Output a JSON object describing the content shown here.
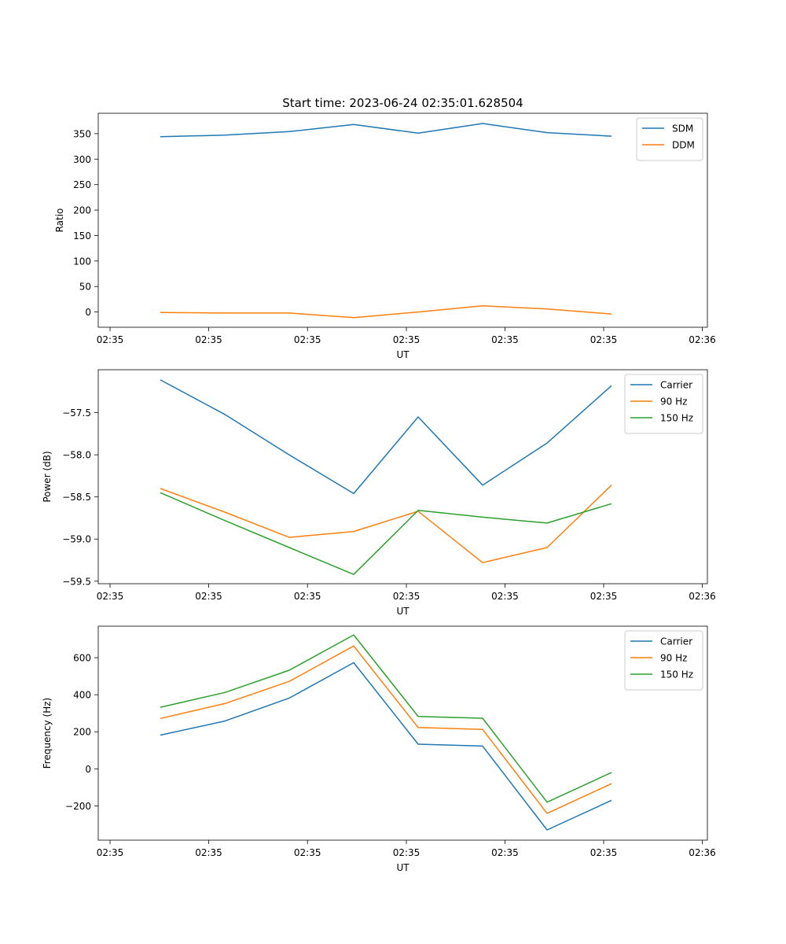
{
  "figure_title": "Start time: 2023-06-24 02:35:01.628504",
  "x_tick_labels": [
    "02:35",
    "02:35",
    "02:35",
    "02:35",
    "02:35",
    "02:35",
    "02:36"
  ],
  "colors": {
    "blue": "#1f77b4",
    "orange": "#ff7f0e",
    "green": "#2ca02c"
  },
  "chart_data": [
    {
      "type": "line",
      "title": "Start time: 2023-06-24 02:35:01.628504",
      "xlabel": "UT",
      "ylabel": "Ratio",
      "ylim": [
        -30,
        390
      ],
      "yticks": [
        0,
        50,
        100,
        150,
        200,
        250,
        300,
        350
      ],
      "ytick_labels": [
        "0",
        "50",
        "100",
        "150",
        "200",
        "250",
        "300",
        "350"
      ],
      "legend_location": "top-right",
      "grid": false,
      "series": [
        {
          "name": "SDM",
          "color": "#1f77b4",
          "values": [
            344,
            347,
            354,
            368,
            351,
            370,
            352,
            345
          ]
        },
        {
          "name": "DDM",
          "color": "#ff7f0e",
          "values": [
            -1,
            -2,
            -2,
            -11,
            0,
            12,
            6,
            -4
          ]
        }
      ]
    },
    {
      "type": "line",
      "title": "",
      "xlabel": "UT",
      "ylabel": "Power (dB)",
      "ylim": [
        -59.53,
        -56.99
      ],
      "yticks": [
        -59.5,
        -59.0,
        -58.5,
        -58.0,
        -57.5
      ],
      "ytick_labels": [
        "−59.5",
        "−59.0",
        "−58.5",
        "−58.0",
        "−57.5"
      ],
      "legend_location": "top-right",
      "grid": false,
      "series": [
        {
          "name": "Carrier",
          "color": "#1f77b4",
          "values": [
            -57.11,
            -57.52,
            -58.0,
            -58.46,
            -57.55,
            -58.36,
            -57.86,
            -57.18
          ]
        },
        {
          "name": "90 Hz",
          "color": "#ff7f0e",
          "values": [
            -58.4,
            -58.68,
            -58.98,
            -58.91,
            -58.67,
            -59.28,
            -59.1,
            -58.36
          ]
        },
        {
          "name": "150 Hz",
          "color": "#2ca02c",
          "values": [
            -58.45,
            -58.78,
            -59.1,
            -59.42,
            -58.66,
            -58.74,
            -58.81,
            -58.58
          ]
        }
      ]
    },
    {
      "type": "line",
      "title": "",
      "xlabel": "UT",
      "ylabel": "Frequency (Hz)",
      "ylim": [
        -385,
        770
      ],
      "yticks": [
        -200,
        0,
        200,
        400,
        600
      ],
      "ytick_labels": [
        "−200",
        "0",
        "200",
        "400",
        "600"
      ],
      "legend_location": "top-right",
      "grid": false,
      "series": [
        {
          "name": "Carrier",
          "color": "#1f77b4",
          "values": [
            182,
            258,
            382,
            573,
            133,
            123,
            -330,
            -170
          ]
        },
        {
          "name": "90 Hz",
          "color": "#ff7f0e",
          "values": [
            272,
            352,
            472,
            663,
            223,
            213,
            -240,
            -80
          ]
        },
        {
          "name": "150 Hz",
          "color": "#2ca02c",
          "values": [
            332,
            412,
            532,
            723,
            283,
            273,
            -180,
            -20
          ]
        }
      ]
    }
  ]
}
